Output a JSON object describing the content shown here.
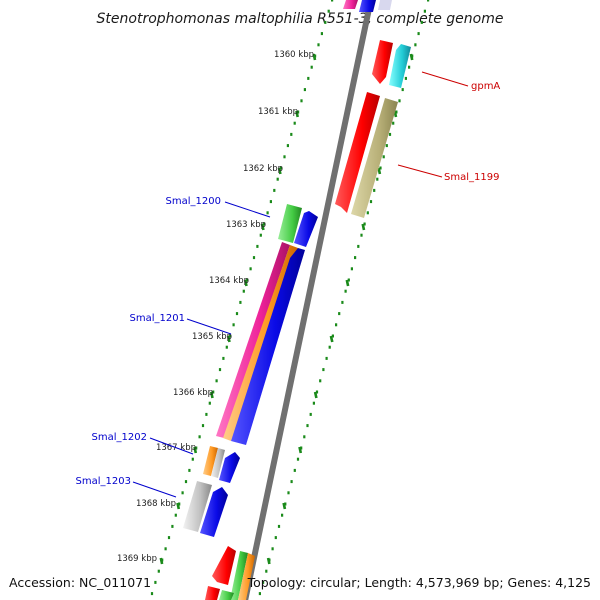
{
  "title": "Stenotrophomonas maltophilia R551-3, complete genome",
  "footer": {
    "accession": "Accession: NC_011071",
    "topology": "Topology: circular; Length: 4,573,969 bp; Genes: 4,125"
  },
  "ticks": [
    "1360 kbp",
    "1361 kbp",
    "1362 kbp",
    "1363 kbp",
    "1364 kbp",
    "1365 kbp",
    "1366 kbp",
    "1367 kbp",
    "1368 kbp",
    "1369 kbp"
  ],
  "gene_labels": {
    "gpmA": "gpmA",
    "smal_1199": "Smal_1199",
    "smal_1200": "Smal_1200",
    "smal_1201": "Smal_1201",
    "smal_1202": "Smal_1202",
    "smal_1203": "Smal_1203"
  },
  "colors": {
    "forward_label": "#cc0000",
    "reverse_label": "#0000cc",
    "backbone": "#808080",
    "tick_dots": "#1a8a1a",
    "red": "#ff0000",
    "cyan": "#20d0d8",
    "khaki": "#b8b078",
    "green": "#44cc44",
    "blue": "#0a0ae6",
    "magenta": "#ee2299",
    "orange": "#ff9922",
    "grey": "#c0c0c0"
  }
}
